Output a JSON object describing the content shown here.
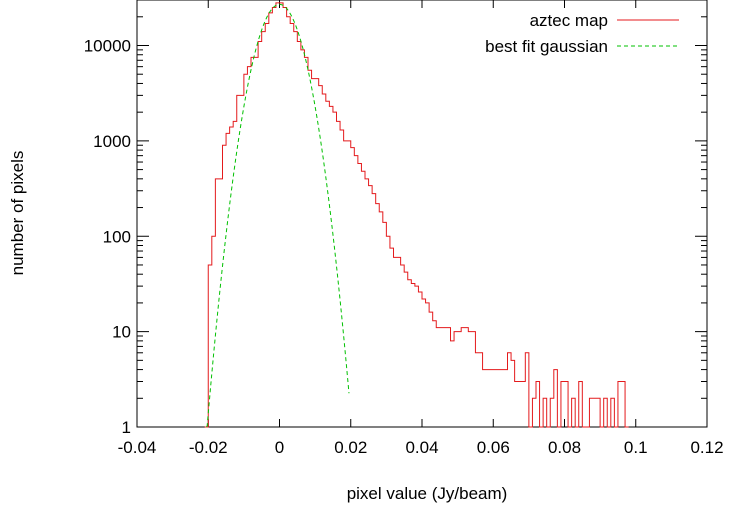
{
  "chart_data": {
    "type": "line",
    "xlabel": "pixel value (Jy/beam)",
    "ylabel": "number of pixels",
    "xlim": [
      -0.04,
      0.12
    ],
    "ylim": [
      1,
      30000
    ],
    "y_scale": "log",
    "grid": false,
    "legend_position": "top-right",
    "x_ticks": [
      "-0.04",
      "-0.02",
      "0",
      "0.02",
      "0.04",
      "0.06",
      "0.08",
      "0.1",
      "0.12"
    ],
    "y_ticks": [
      "1",
      "10",
      "100",
      "1000",
      "10000"
    ],
    "series": [
      {
        "name": "aztec map",
        "color": "#e41a1c",
        "style": "steps",
        "points": [
          [
            -0.0205,
            1
          ],
          [
            -0.0195,
            50
          ],
          [
            -0.0185,
            100
          ],
          [
            -0.0175,
            400
          ],
          [
            -0.0165,
            400
          ],
          [
            -0.0155,
            900
          ],
          [
            -0.0145,
            1200
          ],
          [
            -0.0135,
            1400
          ],
          [
            -0.0125,
            1600
          ],
          [
            -0.0115,
            3000
          ],
          [
            -0.0105,
            3000
          ],
          [
            -0.0095,
            5000
          ],
          [
            -0.0085,
            6000
          ],
          [
            -0.0075,
            7500
          ],
          [
            -0.0065,
            7500
          ],
          [
            -0.0055,
            11000
          ],
          [
            -0.0045,
            14000
          ],
          [
            -0.0035,
            17000
          ],
          [
            -0.0025,
            22000
          ],
          [
            -0.0015,
            25000
          ],
          [
            -0.0005,
            28000
          ],
          [
            0.0005,
            28000
          ],
          [
            0.0015,
            25000
          ],
          [
            0.0025,
            20000
          ],
          [
            0.0035,
            17000
          ],
          [
            0.0045,
            14000
          ],
          [
            0.0055,
            11000
          ],
          [
            0.0065,
            9000
          ],
          [
            0.0075,
            7500
          ],
          [
            0.0085,
            5500
          ],
          [
            0.0095,
            4500
          ],
          [
            0.0105,
            4500
          ],
          [
            0.0115,
            3800
          ],
          [
            0.0125,
            3100
          ],
          [
            0.0135,
            2600
          ],
          [
            0.0145,
            2300
          ],
          [
            0.0155,
            2000
          ],
          [
            0.0165,
            1600
          ],
          [
            0.0175,
            1300
          ],
          [
            0.0185,
            1000
          ],
          [
            0.0195,
            1000
          ],
          [
            0.0205,
            850
          ],
          [
            0.0215,
            700
          ],
          [
            0.0225,
            580
          ],
          [
            0.0235,
            480
          ],
          [
            0.0245,
            400
          ],
          [
            0.0255,
            340
          ],
          [
            0.0265,
            280
          ],
          [
            0.0275,
            220
          ],
          [
            0.0285,
            180
          ],
          [
            0.0295,
            140
          ],
          [
            0.0305,
            100
          ],
          [
            0.0315,
            75
          ],
          [
            0.0325,
            60
          ],
          [
            0.0335,
            60
          ],
          [
            0.0345,
            50
          ],
          [
            0.0355,
            42
          ],
          [
            0.0365,
            35
          ],
          [
            0.0375,
            32
          ],
          [
            0.0385,
            30
          ],
          [
            0.0395,
            26
          ],
          [
            0.0405,
            22
          ],
          [
            0.0415,
            20
          ],
          [
            0.0425,
            16
          ],
          [
            0.0435,
            13
          ],
          [
            0.0445,
            11
          ],
          [
            0.0455,
            11
          ],
          [
            0.0465,
            11
          ],
          [
            0.0475,
            11
          ],
          [
            0.0485,
            8
          ],
          [
            0.0495,
            10
          ],
          [
            0.0505,
            10
          ],
          [
            0.0515,
            11
          ],
          [
            0.0525,
            11
          ],
          [
            0.0535,
            10
          ],
          [
            0.0545,
            10
          ],
          [
            0.0555,
            6
          ],
          [
            0.0565,
            6
          ],
          [
            0.0575,
            4
          ],
          [
            0.0585,
            4
          ],
          [
            0.0595,
            4
          ],
          [
            0.0605,
            4
          ],
          [
            0.0615,
            4
          ],
          [
            0.0625,
            4
          ],
          [
            0.0635,
            4
          ],
          [
            0.0645,
            6
          ],
          [
            0.0655,
            5
          ],
          [
            0.0665,
            3
          ],
          [
            0.0675,
            3
          ],
          [
            0.0685,
            3
          ],
          [
            0.0695,
            6
          ],
          [
            0.0705,
            1
          ],
          [
            0.0715,
            2
          ],
          [
            0.0725,
            3
          ],
          [
            0.0735,
            1
          ],
          [
            0.0745,
            2
          ],
          [
            0.0755,
            1
          ],
          [
            0.0765,
            2
          ],
          [
            0.0775,
            4
          ],
          [
            0.0785,
            1
          ],
          [
            0.0795,
            3
          ],
          [
            0.0805,
            3
          ],
          [
            0.0815,
            1
          ],
          [
            0.0825,
            2
          ],
          [
            0.0835,
            1
          ],
          [
            0.0845,
            3
          ],
          [
            0.0855,
            1
          ],
          [
            0.0865,
            1
          ],
          [
            0.0875,
            2
          ],
          [
            0.0885,
            2
          ],
          [
            0.0895,
            2
          ],
          [
            0.0905,
            1
          ],
          [
            0.0915,
            2
          ],
          [
            0.0925,
            1
          ],
          [
            0.0935,
            2
          ],
          [
            0.0945,
            1
          ],
          [
            0.0955,
            3
          ],
          [
            0.0965,
            3
          ],
          [
            0.0975,
            1
          ]
        ]
      },
      {
        "name": "best fit gaussian",
        "color": "#00c000",
        "style": "dashed",
        "amplitude": 27000,
        "mean": 0.0,
        "sigma": 0.0045,
        "x_range": [
          -0.0205,
          0.0195
        ]
      }
    ]
  }
}
